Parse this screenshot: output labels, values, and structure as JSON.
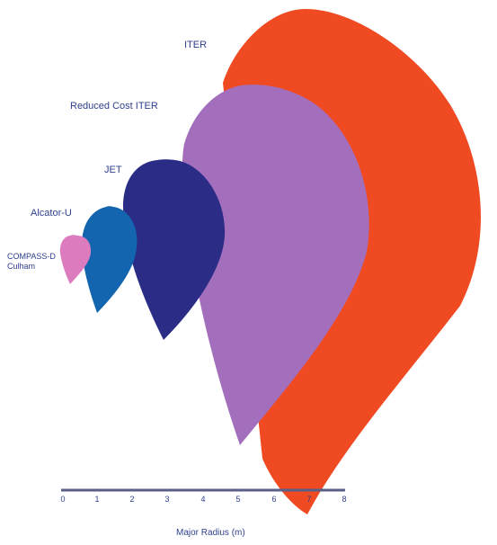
{
  "devices": [
    {
      "name": "ITER",
      "color": "#f04a23"
    },
    {
      "name": "Reduced Cost ITER",
      "color": "#a36fbc"
    },
    {
      "name": "JET",
      "color": "#2b2c86"
    },
    {
      "name": "Alcator-U",
      "color": "#1265ae"
    },
    {
      "name": "COMPASS-D",
      "name_line2": "Culham",
      "color": "#dd7bbf"
    }
  ],
  "axis": {
    "title": "Major Radius (m)",
    "ticks": [
      "0",
      "1",
      "2",
      "3",
      "4",
      "5",
      "6",
      "7",
      "8"
    ],
    "color": "#5a5f8a"
  }
}
